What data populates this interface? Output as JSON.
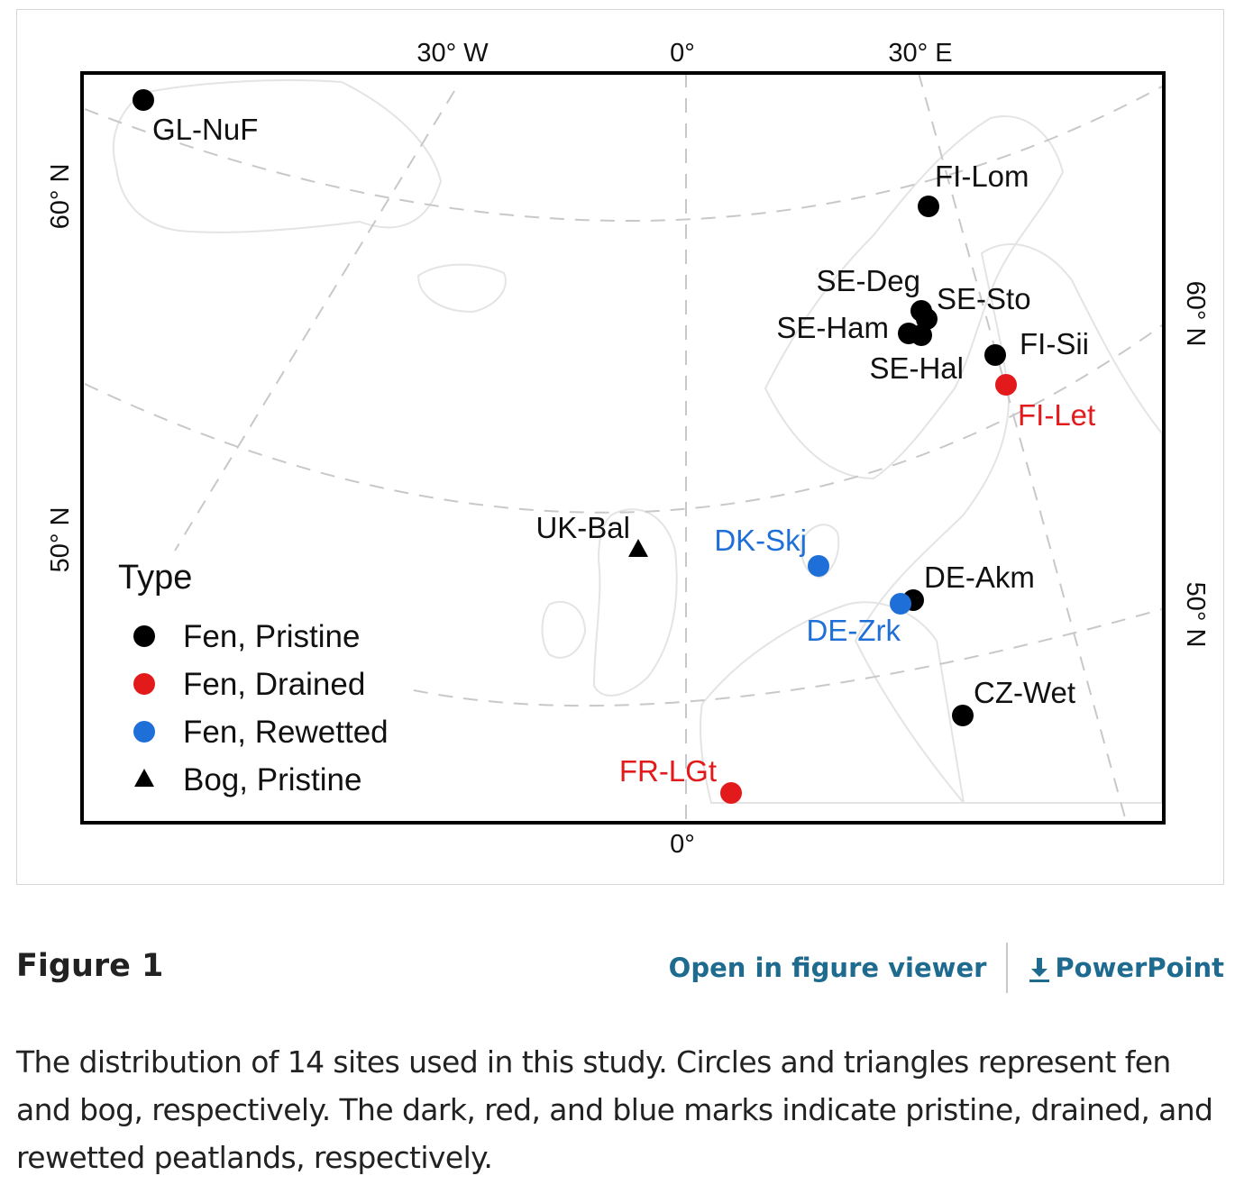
{
  "map": {
    "legend": {
      "title": "Type",
      "items": [
        {
          "label": "Fen, Pristine",
          "color": "#000000",
          "shape": "circle"
        },
        {
          "label": "Fen, Drained",
          "color": "#e31a1c",
          "shape": "circle"
        },
        {
          "label": "Fen, Rewetted",
          "color": "#1f6fd8",
          "shape": "circle"
        },
        {
          "label": "Bog, Pristine",
          "color": "#000000",
          "shape": "triangle"
        }
      ]
    },
    "axis_labels": {
      "top_30w": "30° W",
      "top_0": "0°",
      "top_30e": "30° E",
      "bottom_0": "0°",
      "left_60n": "60° N",
      "left_50n": "50° N",
      "right_60n": "60° N",
      "right_50n": "50° N"
    },
    "sites": [
      {
        "name": "GL-NuF",
        "type": "Fen, Pristine",
        "color": "#000000"
      },
      {
        "name": "FI-Lom",
        "type": "Fen, Pristine",
        "color": "#000000"
      },
      {
        "name": "SE-Deg",
        "type": "Fen, Pristine",
        "color": "#000000"
      },
      {
        "name": "SE-Sto",
        "type": "Fen, Pristine",
        "color": "#000000"
      },
      {
        "name": "SE-Ham",
        "type": "Fen, Pristine",
        "color": "#000000"
      },
      {
        "name": "SE-Hal",
        "type": "Fen, Pristine",
        "color": "#000000"
      },
      {
        "name": "FI-Sii",
        "type": "Fen, Pristine",
        "color": "#000000"
      },
      {
        "name": "FI-Let",
        "type": "Fen, Drained",
        "color": "#e31a1c"
      },
      {
        "name": "UK-Bal",
        "type": "Bog, Pristine",
        "color": "#000000"
      },
      {
        "name": "DK-Skj",
        "type": "Fen, Rewetted",
        "color": "#1f6fd8"
      },
      {
        "name": "DE-Akm",
        "type": "Fen, Pristine",
        "color": "#000000"
      },
      {
        "name": "DE-Zrk",
        "type": "Fen, Rewetted",
        "color": "#1f6fd8"
      },
      {
        "name": "CZ-Wet",
        "type": "Fen, Pristine",
        "color": "#000000"
      },
      {
        "name": "FR-LGt",
        "type": "Fen, Drained",
        "color": "#e31a1c"
      }
    ]
  },
  "figure": {
    "label": "Figure 1",
    "open_viewer": "Open in figure viewer",
    "powerpoint": "PowerPoint",
    "caption": "The distribution of 14 sites used in this study. Circles and triangles represent fen and bog, respectively. The dark, red, and blue marks indicate pristine, drained, and rewetted peatlands, respectively."
  },
  "colors": {
    "link": "#1e6b8f",
    "pristine": "#000000",
    "drained": "#e31a1c",
    "rewetted": "#1f6fd8"
  }
}
